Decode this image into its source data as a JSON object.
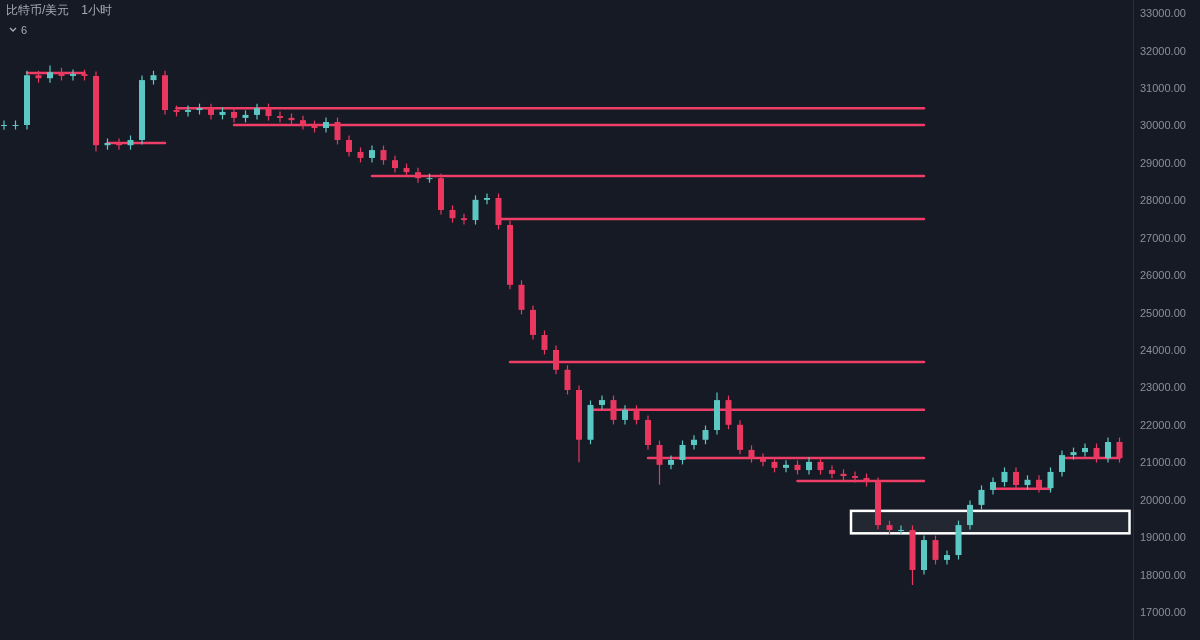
{
  "chart_data": {
    "type": "candlestick",
    "title": "比特币/美元",
    "subtitle": "1小时",
    "annotations": [
      "6"
    ],
    "categories": [
      null,
      null,
      null,
      null,
      null,
      null,
      null,
      null,
      null,
      null,
      null,
      null,
      null,
      null,
      null,
      null,
      null,
      null,
      null,
      null,
      null,
      null,
      null,
      null,
      null,
      null,
      null,
      null,
      null,
      null,
      null,
      null,
      null,
      null,
      null,
      null,
      null,
      null,
      null,
      null,
      null,
      null,
      null,
      null,
      null,
      null,
      null,
      null,
      null,
      null,
      null,
      null,
      null,
      null,
      null,
      null,
      null,
      null,
      null,
      null,
      null,
      null,
      null,
      null,
      null,
      null,
      null,
      null,
      null,
      null,
      null,
      null,
      null,
      null,
      null,
      null,
      null,
      null,
      null,
      null,
      null,
      null,
      null,
      null,
      null,
      null,
      null,
      null,
      null,
      null,
      null,
      null,
      null,
      null,
      null,
      null,
      null,
      null
    ],
    "colors": [
      "#5cc8c4",
      "#5cc8c4",
      "#5cc8c4",
      "#e9375f",
      "#5cc8c4",
      "#e9375f",
      "#5cc8c4",
      "#e9375f",
      "#e9375f",
      "#5cc8c4",
      "#e9375f",
      "#5cc8c4",
      "#5cc8c4",
      "#5cc8c4",
      "#e9375f",
      "#e9375f",
      "#5cc8c4",
      "#5cc8c4",
      "#e9375f",
      "#5cc8c4",
      "#e9375f",
      "#5cc8c4",
      "#5cc8c4",
      "#e9375f",
      "#e9375f",
      "#e9375f",
      "#e9375f",
      "#e9375f",
      "#5cc8c4",
      "#e9375f",
      "#e9375f",
      "#e9375f",
      "#5cc8c4",
      "#e9375f",
      "#e9375f",
      "#e9375f",
      "#e9375f",
      "#5cc8c4",
      "#e9375f",
      "#e9375f",
      "#e9375f",
      "#5cc8c4",
      "#5cc8c4",
      "#e9375f",
      "#e9375f",
      "#e9375f",
      "#e9375f",
      "#e9375f",
      "#e9375f",
      "#e9375f",
      "#e9375f",
      "#5cc8c4",
      "#5cc8c4",
      "#e9375f",
      "#5cc8c4",
      "#e9375f",
      "#e9375f",
      "#e9375f",
      "#5cc8c4",
      "#5cc8c4",
      "#5cc8c4",
      "#5cc8c4",
      "#5cc8c4",
      "#e9375f",
      "#e9375f",
      "#e9375f",
      "#e9375f",
      "#e9375f",
      "#5cc8c4",
      "#e9375f",
      "#5cc8c4",
      "#e9375f",
      "#e9375f",
      "#e9375f",
      "#e9375f",
      "#e9375f",
      "#e9375f",
      "#e9375f",
      "#5cc8c4",
      "#e9375f",
      "#5cc8c4",
      "#e9375f",
      "#5cc8c4",
      "#5cc8c4",
      "#5cc8c4",
      "#5cc8c4",
      "#5cc8c4",
      "#5cc8c4",
      "#e9375f",
      "#5cc8c4",
      "#e9375f",
      "#5cc8c4",
      "#5cc8c4",
      "#5cc8c4",
      "#5cc8c4",
      "#e9375f",
      "#5cc8c4",
      "#e9375f"
    ],
    "ohlc": [
      [
        30000,
        30130,
        29880,
        30010
      ],
      [
        30010,
        30130,
        29890,
        30010
      ],
      [
        30010,
        31460,
        29890,
        31340
      ],
      [
        31340,
        31460,
        31140,
        31260
      ],
      [
        31260,
        31600,
        31140,
        31420
      ],
      [
        31420,
        31540,
        31200,
        31320
      ],
      [
        31320,
        31490,
        31200,
        31370
      ],
      [
        31370,
        31490,
        31200,
        31320
      ],
      [
        31320,
        31440,
        29300,
        29470
      ],
      [
        29470,
        29650,
        29350,
        29530
      ],
      [
        29530,
        29650,
        29350,
        29470
      ],
      [
        29470,
        29730,
        29350,
        29610
      ],
      [
        29610,
        31330,
        29490,
        31210
      ],
      [
        31210,
        31460,
        31090,
        31340
      ],
      [
        31340,
        31460,
        30290,
        30410
      ],
      [
        30410,
        30530,
        30240,
        30360
      ],
      [
        30360,
        30530,
        30240,
        30410
      ],
      [
        30410,
        30580,
        30290,
        30460
      ],
      [
        30460,
        30580,
        30160,
        30280
      ],
      [
        30280,
        30480,
        30160,
        30360
      ],
      [
        30360,
        30480,
        30080,
        30200
      ],
      [
        30200,
        30400,
        30080,
        30280
      ],
      [
        30280,
        30580,
        30160,
        30460
      ],
      [
        30460,
        30580,
        30130,
        30250
      ],
      [
        30250,
        30370,
        30080,
        30200
      ],
      [
        30200,
        30320,
        30020,
        30140
      ],
      [
        30140,
        30260,
        29890,
        30010
      ],
      [
        30010,
        30130,
        29810,
        29930
      ],
      [
        29930,
        30210,
        29810,
        30090
      ],
      [
        30090,
        30210,
        29490,
        29610
      ],
      [
        29610,
        29730,
        29170,
        29290
      ],
      [
        29290,
        29410,
        29010,
        29130
      ],
      [
        29130,
        29460,
        29010,
        29340
      ],
      [
        29340,
        29460,
        28950,
        29070
      ],
      [
        29070,
        29190,
        28740,
        28860
      ],
      [
        28860,
        28980,
        28630,
        28750
      ],
      [
        28750,
        28870,
        28470,
        28590
      ],
      [
        28590,
        28710,
        28470,
        28590
      ],
      [
        28590,
        28710,
        27620,
        27740
      ],
      [
        27740,
        27860,
        27400,
        27520
      ],
      [
        27520,
        27640,
        27350,
        27470
      ],
      [
        27470,
        28130,
        27350,
        28010
      ],
      [
        28010,
        28180,
        27890,
        28060
      ],
      [
        28060,
        28180,
        27220,
        27340
      ],
      [
        27340,
        27460,
        25620,
        25740
      ],
      [
        25740,
        25860,
        24950,
        25070
      ],
      [
        25070,
        25190,
        24280,
        24400
      ],
      [
        24400,
        24520,
        23880,
        24000
      ],
      [
        24000,
        24120,
        23350,
        23470
      ],
      [
        23470,
        23590,
        22810,
        22930
      ],
      [
        22930,
        23050,
        21000,
        21600
      ],
      [
        21600,
        22650,
        21480,
        22530
      ],
      [
        22530,
        22780,
        22410,
        22660
      ],
      [
        22660,
        22780,
        22010,
        22130
      ],
      [
        22130,
        22520,
        22010,
        22400
      ],
      [
        22400,
        22520,
        22010,
        22130
      ],
      [
        22130,
        22250,
        21340,
        21460
      ],
      [
        21460,
        21580,
        20400,
        20930
      ],
      [
        20930,
        21180,
        20810,
        21060
      ],
      [
        21060,
        21580,
        20940,
        21460
      ],
      [
        21460,
        21720,
        21340,
        21600
      ],
      [
        21600,
        21980,
        21480,
        21860
      ],
      [
        21860,
        22860,
        21740,
        22660
      ],
      [
        22660,
        22780,
        21880,
        22000
      ],
      [
        22000,
        22120,
        21210,
        21330
      ],
      [
        21330,
        21450,
        20990,
        21110
      ],
      [
        21110,
        21230,
        20890,
        21010
      ],
      [
        21010,
        21130,
        20730,
        20850
      ],
      [
        20850,
        21050,
        20730,
        20930
      ],
      [
        20930,
        21050,
        20670,
        20790
      ],
      [
        20790,
        21130,
        20670,
        21010
      ],
      [
        21010,
        21130,
        20670,
        20790
      ],
      [
        20790,
        20910,
        20570,
        20690
      ],
      [
        20690,
        20810,
        20510,
        20630
      ],
      [
        20630,
        20750,
        20460,
        20580
      ],
      [
        20580,
        20700,
        20350,
        20470
      ],
      [
        20470,
        20590,
        19200,
        19320
      ],
      [
        19320,
        19440,
        19070,
        19190
      ],
      [
        19190,
        19310,
        19070,
        19190
      ],
      [
        19190,
        19310,
        17720,
        18120
      ],
      [
        18120,
        19040,
        18000,
        18920
      ],
      [
        18920,
        19040,
        18270,
        18390
      ],
      [
        18390,
        18640,
        18270,
        18520
      ],
      [
        18520,
        19440,
        18400,
        19320
      ],
      [
        19320,
        19980,
        19200,
        19860
      ],
      [
        19860,
        20380,
        19740,
        20260
      ],
      [
        20260,
        20590,
        20140,
        20470
      ],
      [
        20470,
        20860,
        20350,
        20740
      ],
      [
        20740,
        20860,
        20270,
        20390
      ],
      [
        20390,
        20650,
        20270,
        20530
      ],
      [
        20530,
        20650,
        20190,
        20310
      ],
      [
        20310,
        20860,
        20190,
        20740
      ],
      [
        20740,
        21310,
        20620,
        21190
      ],
      [
        21190,
        21390,
        21070,
        21270
      ],
      [
        21270,
        21500,
        21150,
        21380
      ],
      [
        21380,
        21500,
        20990,
        21110
      ],
      [
        21110,
        21660,
        20990,
        21540
      ],
      [
        21540,
        21660,
        20990,
        21110
      ]
    ],
    "series": [
      {
        "type": "line",
        "color": "#ee3e67",
        "values": [
          null,
          null,
          31400,
          31400,
          31400,
          31400,
          31400,
          31400,
          null,
          null,
          null,
          null,
          null,
          null,
          null,
          null,
          null,
          null,
          null,
          null,
          null,
          null,
          null,
          null,
          null,
          null,
          null,
          null,
          null,
          null,
          null,
          null,
          null,
          null,
          null,
          null,
          null,
          null,
          null,
          null,
          null,
          null,
          null,
          null,
          null,
          null,
          null,
          null,
          null,
          null,
          null,
          null,
          null,
          null,
          null,
          null,
          null,
          null,
          null,
          null,
          null,
          null,
          null,
          null,
          null,
          null,
          null,
          null,
          null,
          null,
          null,
          null,
          null,
          null,
          null,
          null,
          null,
          null,
          null,
          null,
          null,
          null,
          null,
          null,
          null,
          null,
          null,
          null,
          null,
          null,
          null,
          null,
          null,
          null,
          null,
          null,
          null,
          null
        ]
      },
      {
        "type": "line",
        "color": "#ee3e67",
        "values": [
          null,
          null,
          null,
          null,
          null,
          null,
          null,
          null,
          null,
          29530,
          29530,
          29530,
          29530,
          29530,
          29530,
          null,
          null,
          null,
          null,
          null,
          null,
          null,
          null,
          null,
          null,
          null,
          null,
          null,
          null,
          null,
          null,
          null,
          null,
          null,
          null,
          null,
          null,
          null,
          null,
          null,
          null,
          null,
          null,
          null,
          null,
          null,
          null,
          null,
          null,
          null,
          null,
          null,
          null,
          null,
          null,
          null,
          null,
          null,
          null,
          null,
          null,
          null,
          null,
          null,
          null,
          null,
          null,
          null,
          null,
          null,
          null,
          null,
          null,
          null,
          null,
          null,
          null,
          null,
          null,
          null,
          null,
          null,
          null,
          null,
          null,
          null,
          null,
          null,
          null,
          null,
          null,
          null,
          null,
          null,
          null,
          null,
          null,
          null
        ]
      },
      {
        "type": "line",
        "color": "#ee3e67",
        "values": [
          null,
          null,
          null,
          null,
          null,
          null,
          null,
          null,
          null,
          null,
          null,
          null,
          null,
          null,
          null,
          30460,
          30460,
          30460,
          30460,
          30460,
          30460,
          30460,
          30460,
          30460,
          30460,
          30460,
          30460,
          30460,
          30460,
          30460,
          30460,
          30460,
          30460,
          30460,
          30460,
          30460,
          30460,
          30460,
          30460,
          30460,
          30460,
          30460,
          30460,
          30460,
          30460,
          30460,
          30460,
          30460,
          30460,
          30460,
          30460,
          30460,
          30460,
          30460,
          30460,
          30460,
          30460,
          30460,
          30460,
          30460,
          30460,
          30460,
          30460,
          30460,
          30460,
          30460,
          30460,
          30460,
          30460,
          30460,
          30460,
          30460,
          30460,
          30460,
          30460,
          30460,
          30460,
          30460,
          30460,
          30460,
          30460,
          null,
          null,
          null,
          null,
          null,
          null,
          null,
          null,
          null,
          null,
          null,
          null,
          null,
          null,
          null,
          null,
          null
        ]
      },
      {
        "type": "line",
        "color": "#ee3e67",
        "values": [
          null,
          null,
          null,
          null,
          null,
          null,
          null,
          null,
          null,
          null,
          null,
          null,
          null,
          null,
          null,
          null,
          null,
          null,
          null,
          null,
          30010,
          30010,
          30010,
          30010,
          30010,
          30010,
          30010,
          30010,
          30010,
          30010,
          30010,
          30010,
          30010,
          30010,
          30010,
          30010,
          30010,
          30010,
          30010,
          30010,
          30010,
          30010,
          30010,
          30010,
          30010,
          30010,
          30010,
          30010,
          30010,
          30010,
          30010,
          30010,
          30010,
          30010,
          30010,
          30010,
          30010,
          30010,
          30010,
          30010,
          30010,
          30010,
          30010,
          30010,
          30010,
          30010,
          30010,
          30010,
          30010,
          30010,
          30010,
          30010,
          30010,
          30010,
          30010,
          30010,
          30010,
          30010,
          30010,
          30010,
          30010,
          null,
          null,
          null,
          null,
          null,
          null,
          null,
          null,
          null,
          null,
          null,
          null,
          null,
          null,
          null,
          null,
          null
        ]
      },
      {
        "type": "line",
        "color": "#ee3e67",
        "values": [
          null,
          null,
          null,
          null,
          null,
          null,
          null,
          null,
          null,
          null,
          null,
          null,
          null,
          null,
          null,
          null,
          null,
          null,
          null,
          null,
          null,
          null,
          null,
          null,
          null,
          null,
          null,
          null,
          null,
          null,
          null,
          null,
          28650,
          28650,
          28650,
          28650,
          28650,
          28650,
          28650,
          28650,
          28650,
          28650,
          28650,
          28650,
          28650,
          28650,
          28650,
          28650,
          28650,
          28650,
          28650,
          28650,
          28650,
          28650,
          28650,
          28650,
          28650,
          28650,
          28650,
          28650,
          28650,
          28650,
          28650,
          28650,
          28650,
          28650,
          28650,
          28650,
          28650,
          28650,
          28650,
          28650,
          28650,
          28650,
          28650,
          28650,
          28650,
          28650,
          28650,
          28650,
          28650,
          null,
          null,
          null,
          null,
          null,
          null,
          null,
          null,
          null,
          null,
          null,
          null,
          null,
          null,
          null,
          null,
          null
        ]
      },
      {
        "type": "line",
        "color": "#ee3e67",
        "values": [
          null,
          null,
          null,
          null,
          null,
          null,
          null,
          null,
          null,
          null,
          null,
          null,
          null,
          null,
          null,
          null,
          null,
          null,
          null,
          null,
          null,
          null,
          null,
          null,
          null,
          null,
          null,
          null,
          null,
          null,
          null,
          null,
          null,
          null,
          null,
          null,
          null,
          null,
          null,
          null,
          null,
          null,
          null,
          27500,
          27500,
          27500,
          27500,
          27500,
          27500,
          27500,
          27500,
          27500,
          27500,
          27500,
          27500,
          27500,
          27500,
          27500,
          27500,
          27500,
          27500,
          27500,
          27500,
          27500,
          27500,
          27500,
          27500,
          27500,
          27500,
          27500,
          27500,
          27500,
          27500,
          27500,
          27500,
          27500,
          27500,
          27500,
          27500,
          27500,
          27500,
          null,
          null,
          null,
          null,
          null,
          null,
          null,
          null,
          null,
          null,
          null,
          null,
          null,
          null,
          null,
          null,
          null
        ]
      },
      {
        "type": "line",
        "color": "#ee3e67",
        "values": [
          null,
          null,
          null,
          null,
          null,
          null,
          null,
          null,
          null,
          null,
          null,
          null,
          null,
          null,
          null,
          null,
          null,
          null,
          null,
          null,
          null,
          null,
          null,
          null,
          null,
          null,
          null,
          null,
          null,
          null,
          null,
          null,
          null,
          null,
          null,
          null,
          null,
          null,
          null,
          null,
          null,
          null,
          null,
          null,
          23680,
          23680,
          23680,
          23680,
          23680,
          23680,
          23680,
          23680,
          23680,
          23680,
          23680,
          23680,
          23680,
          23680,
          23680,
          23680,
          23680,
          23680,
          23680,
          23680,
          23680,
          23680,
          23680,
          23680,
          23680,
          23680,
          23680,
          23680,
          23680,
          23680,
          23680,
          23680,
          23680,
          23680,
          23680,
          23680,
          23680,
          null,
          null,
          null,
          null,
          null,
          null,
          null,
          null,
          null,
          null,
          null,
          null,
          null,
          null,
          null,
          null,
          null
        ]
      },
      {
        "type": "line",
        "color": "#ee3e67",
        "values": [
          null,
          null,
          null,
          null,
          null,
          null,
          null,
          null,
          null,
          null,
          null,
          null,
          null,
          null,
          null,
          null,
          null,
          null,
          null,
          null,
          null,
          null,
          null,
          null,
          null,
          null,
          null,
          null,
          null,
          null,
          null,
          null,
          null,
          null,
          null,
          null,
          null,
          null,
          null,
          null,
          null,
          null,
          null,
          null,
          null,
          null,
          null,
          null,
          null,
          null,
          null,
          22400,
          22400,
          22400,
          22400,
          22400,
          22400,
          22400,
          22400,
          22400,
          22400,
          22400,
          22400,
          22400,
          22400,
          22400,
          22400,
          22400,
          22400,
          22400,
          22400,
          22400,
          22400,
          22400,
          22400,
          22400,
          22400,
          22400,
          22400,
          22400,
          22400,
          null,
          null,
          null,
          null,
          null,
          null,
          null,
          null,
          null,
          null,
          null,
          null,
          null,
          null,
          null,
          null,
          null
        ]
      },
      {
        "type": "line",
        "color": "#ee3e67",
        "values": [
          null,
          null,
          null,
          null,
          null,
          null,
          null,
          null,
          null,
          null,
          null,
          null,
          null,
          null,
          null,
          null,
          null,
          null,
          null,
          null,
          null,
          null,
          null,
          null,
          null,
          null,
          null,
          null,
          null,
          null,
          null,
          null,
          null,
          null,
          null,
          null,
          null,
          null,
          null,
          null,
          null,
          null,
          null,
          null,
          null,
          null,
          null,
          null,
          null,
          null,
          null,
          null,
          null,
          null,
          null,
          null,
          21110,
          21110,
          21110,
          21110,
          21110,
          21110,
          21110,
          21110,
          21110,
          21110,
          21110,
          21110,
          21110,
          21110,
          21110,
          21110,
          21110,
          21110,
          21110,
          21110,
          21110,
          21110,
          21110,
          21110,
          21110,
          null,
          null,
          null,
          null,
          null,
          null,
          null,
          null,
          null,
          null,
          null,
          null,
          null,
          null,
          null,
          null,
          null
        ]
      },
      {
        "type": "line",
        "color": "#ee3e67",
        "values": [
          null,
          null,
          null,
          null,
          null,
          null,
          null,
          null,
          null,
          null,
          null,
          null,
          null,
          null,
          null,
          null,
          null,
          null,
          null,
          null,
          null,
          null,
          null,
          null,
          null,
          null,
          null,
          null,
          null,
          null,
          null,
          null,
          null,
          null,
          null,
          null,
          null,
          null,
          null,
          null,
          null,
          null,
          null,
          null,
          null,
          null,
          null,
          null,
          null,
          null,
          null,
          null,
          null,
          null,
          null,
          null,
          null,
          null,
          null,
          null,
          null,
          null,
          null,
          null,
          null,
          null,
          null,
          null,
          null,
          20500,
          20500,
          20500,
          20500,
          20500,
          20500,
          20500,
          20500,
          20500,
          20500,
          20500,
          20500,
          null,
          null,
          null,
          null,
          null,
          null,
          null,
          null,
          null,
          null,
          null,
          null,
          null,
          null,
          null,
          null,
          null
        ]
      },
      {
        "type": "line",
        "color": "#ee3e67",
        "values": [
          null,
          null,
          null,
          null,
          null,
          null,
          null,
          null,
          null,
          null,
          null,
          null,
          null,
          null,
          null,
          null,
          null,
          null,
          null,
          null,
          null,
          null,
          null,
          null,
          null,
          null,
          null,
          null,
          null,
          null,
          null,
          null,
          null,
          null,
          null,
          null,
          null,
          null,
          null,
          null,
          null,
          null,
          null,
          null,
          null,
          null,
          null,
          null,
          null,
          null,
          null,
          null,
          null,
          null,
          null,
          null,
          null,
          null,
          null,
          null,
          null,
          null,
          null,
          null,
          null,
          null,
          null,
          null,
          null,
          null,
          null,
          null,
          null,
          null,
          null,
          null,
          null,
          null,
          null,
          null,
          null,
          null,
          null,
          null,
          null,
          null,
          20290,
          20290,
          20290,
          20290,
          20290,
          20290,
          null,
          null,
          null,
          null,
          null,
          null
        ]
      },
      {
        "type": "line",
        "color": "#ee3e67",
        "values": [
          null,
          null,
          null,
          null,
          null,
          null,
          null,
          null,
          null,
          null,
          null,
          null,
          null,
          null,
          null,
          null,
          null,
          null,
          null,
          null,
          null,
          null,
          null,
          null,
          null,
          null,
          null,
          null,
          null,
          null,
          null,
          null,
          null,
          null,
          null,
          null,
          null,
          null,
          null,
          null,
          null,
          null,
          null,
          null,
          null,
          null,
          null,
          null,
          null,
          null,
          null,
          null,
          null,
          null,
          null,
          null,
          null,
          null,
          null,
          null,
          null,
          null,
          null,
          null,
          null,
          null,
          null,
          null,
          null,
          null,
          null,
          null,
          null,
          null,
          null,
          null,
          null,
          null,
          null,
          null,
          null,
          null,
          null,
          null,
          null,
          null,
          null,
          null,
          null,
          null,
          null,
          null,
          21110,
          21110,
          21110,
          21110,
          21110,
          21110
        ]
      }
    ],
    "bands": [
      {
        "axis": "y",
        "from": 19100,
        "to": 19700,
        "color": "#ffffff"
      }
    ],
    "ylim": [
      16250,
      33350
    ],
    "yticks": [
      {
        "value": 17000,
        "label": "17000.00"
      },
      {
        "value": 18000,
        "label": "18000.00"
      },
      {
        "value": 19000,
        "label": "19000.00"
      },
      {
        "value": 20000,
        "label": "20000.00"
      },
      {
        "value": 21000,
        "label": "21000.00"
      },
      {
        "value": 22000,
        "label": "22000.00"
      },
      {
        "value": 23000,
        "label": "23000.00"
      },
      {
        "value": 24000,
        "label": "24000.00"
      },
      {
        "value": 25000,
        "label": "25000.00"
      },
      {
        "value": 26000,
        "label": "26000.00"
      },
      {
        "value": 27000,
        "label": "27000.00"
      },
      {
        "value": 28000,
        "label": "28000.00"
      },
      {
        "value": 29000,
        "label": "29000.00"
      },
      {
        "value": 30000,
        "label": "30000.00"
      },
      {
        "value": 31000,
        "label": "31000.00"
      },
      {
        "value": 32000,
        "label": "32000.00"
      },
      {
        "value": 33000,
        "label": "33000.00"
      }
    ],
    "tick_labels": "y"
  }
}
